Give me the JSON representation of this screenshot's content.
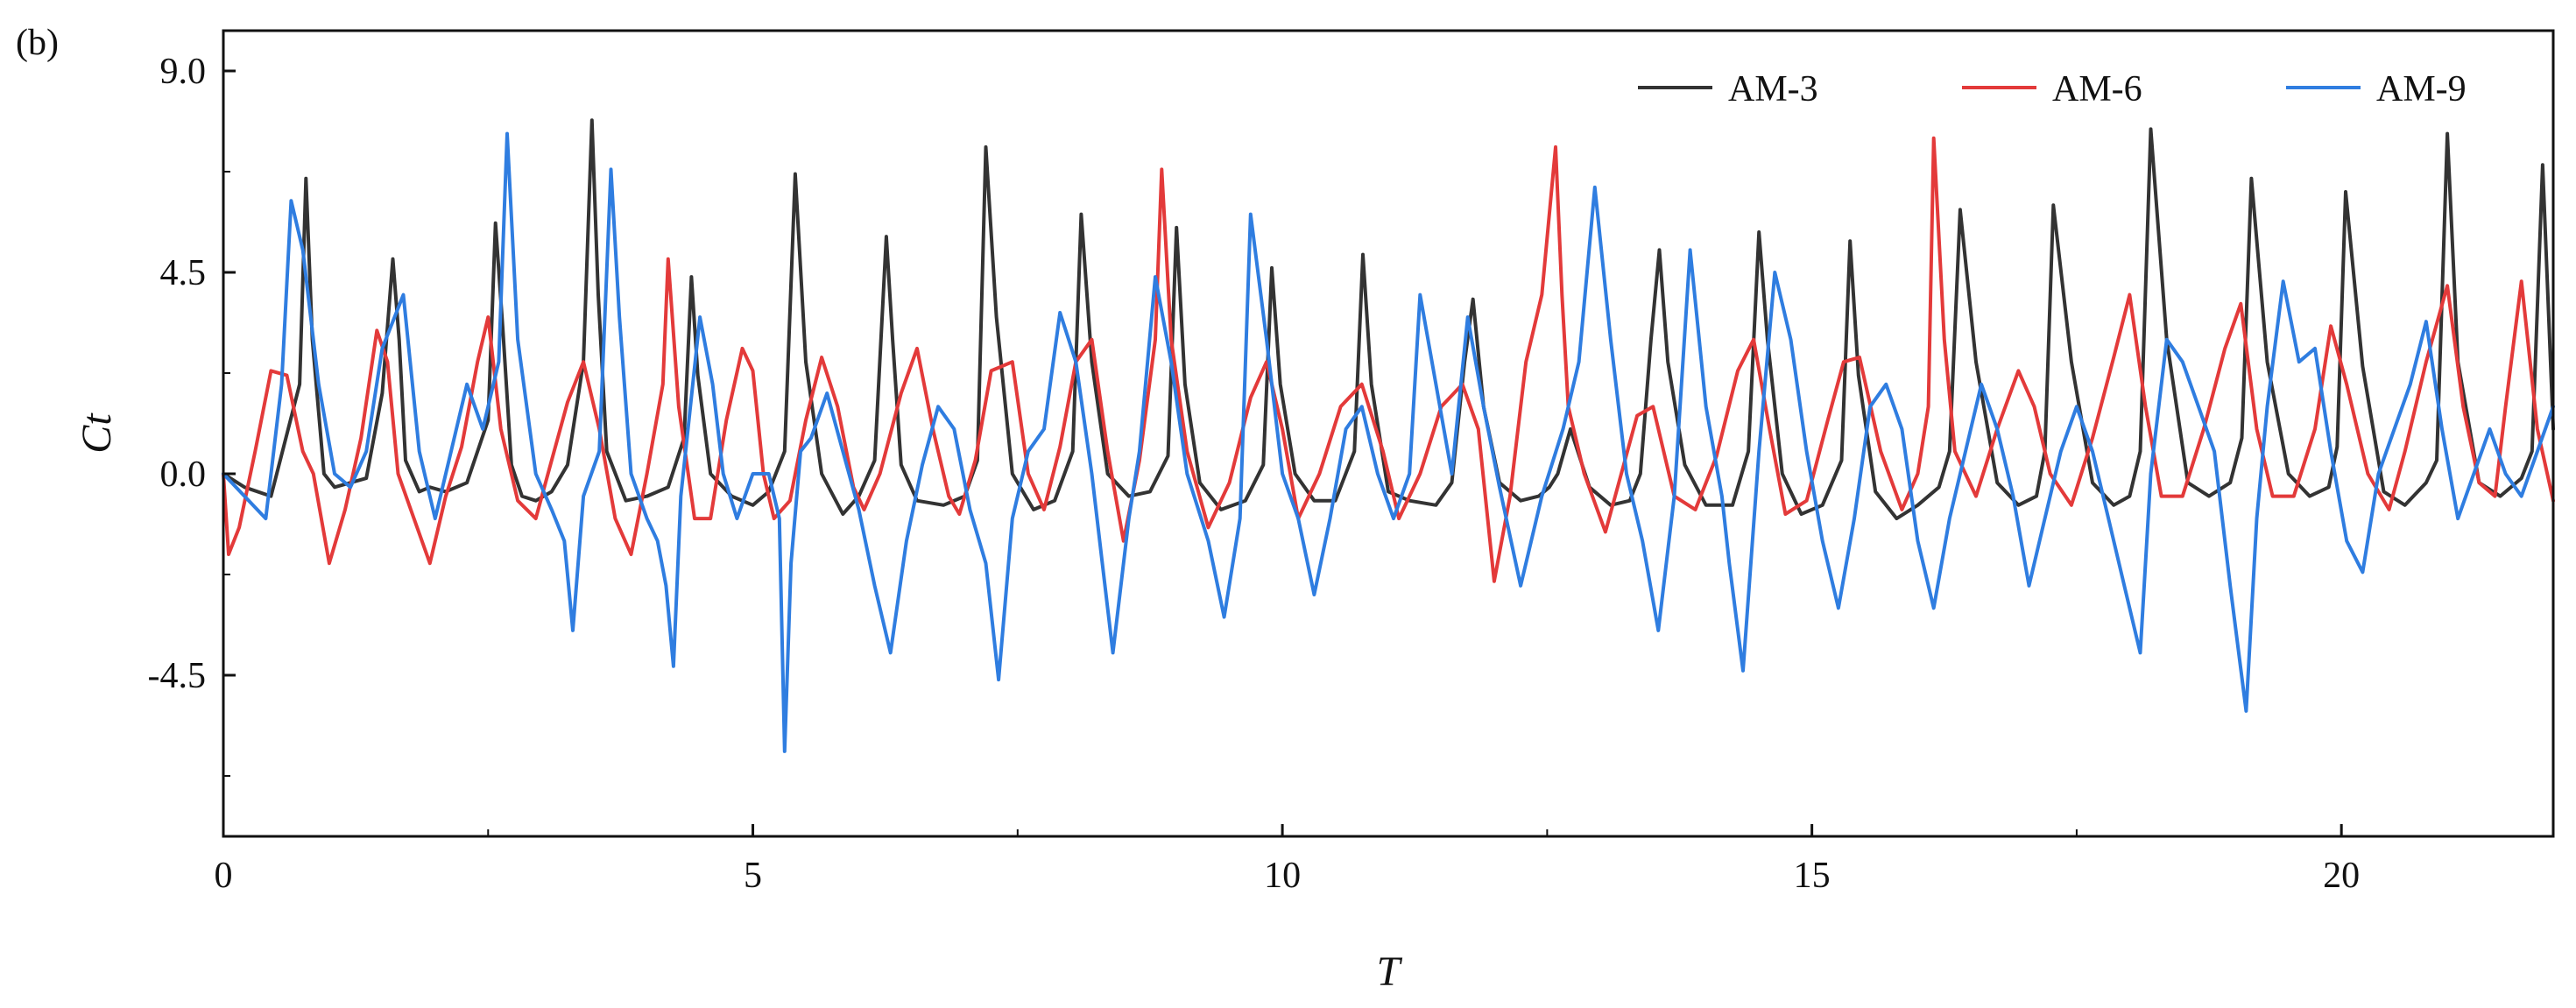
{
  "panel_label": "(b)",
  "chart_data": {
    "type": "line",
    "title": "",
    "xlabel": "T",
    "ylabel": "Ct",
    "xlim": [
      0,
      22
    ],
    "ylim": [
      -8.1,
      9.9
    ],
    "xticks": [
      0,
      5,
      10,
      15,
      20
    ],
    "xtick_labels": [
      "0",
      "5",
      "10",
      "15",
      "20"
    ],
    "yticks": [
      9.0,
      4.5,
      0.0,
      -4.5
    ],
    "ytick_labels": [
      "9.0",
      "4.5",
      "0.0",
      "-4.5"
    ],
    "grid": false,
    "legend_position": "top-right",
    "series": [
      {
        "name": "AM-3",
        "color": "#333333",
        "x": [
          0.0,
          0.2,
          0.45,
          0.72,
          0.78,
          0.84,
          0.95,
          1.05,
          1.2,
          1.35,
          1.5,
          1.6,
          1.66,
          1.72,
          1.85,
          1.95,
          2.1,
          2.3,
          2.5,
          2.57,
          2.64,
          2.72,
          2.82,
          2.95,
          3.1,
          3.25,
          3.4,
          3.48,
          3.54,
          3.62,
          3.8,
          4.0,
          4.2,
          4.35,
          4.42,
          4.48,
          4.6,
          4.8,
          5.0,
          5.15,
          5.3,
          5.4,
          5.5,
          5.65,
          5.85,
          6.0,
          6.15,
          6.26,
          6.32,
          6.4,
          6.55,
          6.8,
          7.0,
          7.12,
          7.2,
          7.3,
          7.45,
          7.65,
          7.85,
          8.02,
          8.1,
          8.2,
          8.35,
          8.55,
          8.75,
          8.92,
          9.0,
          9.08,
          9.22,
          9.42,
          9.65,
          9.82,
          9.9,
          9.98,
          10.12,
          10.3,
          10.5,
          10.68,
          10.76,
          10.84,
          11.0,
          11.2,
          11.45,
          11.6,
          11.72,
          11.8,
          11.9,
          12.05,
          12.25,
          12.42,
          12.52,
          12.6,
          12.72,
          12.9,
          13.1,
          13.28,
          13.38,
          13.48,
          13.56,
          13.64,
          13.8,
          14.0,
          14.25,
          14.4,
          14.5,
          14.58,
          14.72,
          14.9,
          15.1,
          15.28,
          15.36,
          15.44,
          15.6,
          15.8,
          16.0,
          16.2,
          16.3,
          16.4,
          16.55,
          16.75,
          16.95,
          17.12,
          17.2,
          17.28,
          17.45,
          17.65,
          17.85,
          18.0,
          18.1,
          18.2,
          18.35,
          18.55,
          18.75,
          18.95,
          19.06,
          19.15,
          19.3,
          19.5,
          19.7,
          19.88,
          19.96,
          20.04,
          20.2,
          20.4,
          20.6,
          20.8,
          20.9,
          21.0,
          21.1,
          21.3,
          21.5,
          21.7,
          21.8,
          21.9,
          22.0
        ],
        "y": [
          0.0,
          -0.3,
          -0.5,
          2.0,
          6.6,
          3.0,
          0.0,
          -0.3,
          -0.2,
          -0.1,
          1.8,
          4.8,
          3.0,
          0.3,
          -0.4,
          -0.3,
          -0.4,
          -0.2,
          1.2,
          5.6,
          3.2,
          0.2,
          -0.5,
          -0.6,
          -0.4,
          0.2,
          2.5,
          7.9,
          4.0,
          0.5,
          -0.6,
          -0.5,
          -0.3,
          0.8,
          4.4,
          2.2,
          0.0,
          -0.5,
          -0.7,
          -0.4,
          0.5,
          6.7,
          2.5,
          0.0,
          -0.9,
          -0.5,
          0.3,
          5.3,
          3.0,
          0.2,
          -0.6,
          -0.7,
          -0.5,
          0.3,
          7.3,
          3.5,
          0.0,
          -0.8,
          -0.6,
          0.5,
          5.8,
          2.5,
          0.0,
          -0.5,
          -0.4,
          0.4,
          5.5,
          2.0,
          -0.2,
          -0.8,
          -0.6,
          0.2,
          4.6,
          2.0,
          0.0,
          -0.6,
          -0.6,
          0.5,
          4.9,
          2.0,
          -0.4,
          -0.6,
          -0.7,
          -0.2,
          2.5,
          3.9,
          1.5,
          -0.2,
          -0.6,
          -0.5,
          -0.3,
          0.0,
          1.0,
          -0.3,
          -0.7,
          -0.6,
          0.0,
          3.0,
          5.0,
          2.5,
          0.2,
          -0.7,
          -0.7,
          0.5,
          5.4,
          3.0,
          0.0,
          -0.9,
          -0.7,
          0.3,
          5.2,
          2.2,
          -0.4,
          -1.0,
          -0.7,
          -0.3,
          0.5,
          5.9,
          2.5,
          -0.2,
          -0.7,
          -0.5,
          0.5,
          6.0,
          2.5,
          -0.2,
          -0.7,
          -0.5,
          0.5,
          7.7,
          3.0,
          -0.2,
          -0.5,
          -0.2,
          0.8,
          6.6,
          2.5,
          0.0,
          -0.5,
          -0.3,
          0.6,
          6.3,
          2.4,
          -0.4,
          -0.7,
          -0.2,
          0.3,
          7.6,
          2.5,
          -0.2,
          -0.5,
          -0.1,
          0.5,
          6.9,
          1.0
        ]
      },
      {
        "name": "AM-6",
        "color": "#e33a3a",
        "x": [
          0.0,
          0.05,
          0.15,
          0.3,
          0.45,
          0.6,
          0.75,
          0.85,
          1.0,
          1.15,
          1.3,
          1.45,
          1.55,
          1.65,
          1.8,
          1.95,
          2.1,
          2.25,
          2.4,
          2.5,
          2.62,
          2.78,
          2.95,
          3.1,
          3.25,
          3.4,
          3.55,
          3.7,
          3.85,
          4.0,
          4.15,
          4.2,
          4.3,
          4.45,
          4.6,
          4.75,
          4.9,
          5.0,
          5.1,
          5.2,
          5.35,
          5.5,
          5.65,
          5.8,
          5.95,
          6.05,
          6.2,
          6.4,
          6.55,
          6.7,
          6.85,
          6.95,
          7.1,
          7.25,
          7.45,
          7.6,
          7.75,
          7.9,
          8.05,
          8.2,
          8.35,
          8.5,
          8.65,
          8.8,
          8.86,
          8.95,
          9.1,
          9.3,
          9.5,
          9.7,
          9.85,
          10.0,
          10.15,
          10.35,
          10.55,
          10.75,
          10.95,
          11.1,
          11.3,
          11.5,
          11.7,
          11.85,
          12.0,
          12.15,
          12.3,
          12.45,
          12.58,
          12.64,
          12.7,
          12.85,
          13.05,
          13.2,
          13.35,
          13.5,
          13.7,
          13.9,
          14.1,
          14.3,
          14.45,
          14.6,
          14.75,
          14.95,
          15.15,
          15.3,
          15.45,
          15.65,
          15.85,
          16.0,
          16.1,
          16.15,
          16.25,
          16.35,
          16.55,
          16.75,
          16.95,
          17.1,
          17.25,
          17.45,
          17.65,
          17.85,
          18.0,
          18.15,
          18.3,
          18.5,
          18.7,
          18.9,
          19.05,
          19.2,
          19.35,
          19.55,
          19.75,
          19.9,
          20.05,
          20.25,
          20.45,
          20.6,
          20.8,
          21.0,
          21.15,
          21.3,
          21.45,
          21.55,
          21.7,
          21.85,
          22.0
        ],
        "y": [
          0.0,
          -1.8,
          -1.2,
          0.5,
          2.3,
          2.2,
          0.5,
          0.0,
          -2.0,
          -0.8,
          0.8,
          3.2,
          2.5,
          0.0,
          -1.0,
          -2.0,
          -0.5,
          0.6,
          2.5,
          3.5,
          1.0,
          -0.6,
          -1.0,
          0.3,
          1.6,
          2.5,
          1.0,
          -1.0,
          -1.8,
          0.0,
          2.0,
          4.8,
          1.5,
          -1.0,
          -1.0,
          1.2,
          2.8,
          2.3,
          0.0,
          -1.0,
          -0.6,
          1.2,
          2.6,
          1.5,
          -0.3,
          -0.8,
          0.0,
          1.8,
          2.8,
          1.0,
          -0.5,
          -0.9,
          0.3,
          2.3,
          2.5,
          0.0,
          -0.8,
          0.6,
          2.5,
          3.0,
          0.5,
          -1.5,
          0.3,
          3.0,
          6.8,
          3.0,
          0.5,
          -1.2,
          -0.2,
          1.7,
          2.5,
          1.0,
          -1.0,
          0.0,
          1.5,
          2.0,
          0.5,
          -1.0,
          0.0,
          1.5,
          2.0,
          1.0,
          -2.4,
          -0.5,
          2.5,
          4.0,
          7.3,
          4.0,
          1.5,
          0.0,
          -1.3,
          0.0,
          1.3,
          1.5,
          -0.5,
          -0.8,
          0.4,
          2.3,
          3.0,
          1.0,
          -0.9,
          -0.6,
          1.2,
          2.5,
          2.6,
          0.5,
          -0.8,
          0.0,
          1.5,
          7.5,
          3.0,
          0.5,
          -0.5,
          1.0,
          2.3,
          1.5,
          0.0,
          -0.7,
          0.8,
          2.6,
          4.0,
          1.5,
          -0.5,
          -0.5,
          1.0,
          2.8,
          3.8,
          1.0,
          -0.5,
          -0.5,
          1.0,
          3.3,
          2.0,
          0.0,
          -0.8,
          0.5,
          2.5,
          4.2,
          1.5,
          -0.2,
          -0.5,
          1.5,
          4.3,
          1.0,
          -0.6
        ]
      },
      {
        "name": "AM-9",
        "color": "#2f7de0",
        "x": [
          0.0,
          0.2,
          0.4,
          0.55,
          0.64,
          0.75,
          0.9,
          1.05,
          1.2,
          1.35,
          1.5,
          1.7,
          1.85,
          2.0,
          2.15,
          2.3,
          2.45,
          2.6,
          2.68,
          2.78,
          2.95,
          3.1,
          3.22,
          3.3,
          3.4,
          3.55,
          3.66,
          3.74,
          3.85,
          4.0,
          4.1,
          4.18,
          4.25,
          4.32,
          4.5,
          4.62,
          4.72,
          4.85,
          5.0,
          5.15,
          5.25,
          5.3,
          5.36,
          5.45,
          5.55,
          5.7,
          5.85,
          6.0,
          6.15,
          6.3,
          6.45,
          6.6,
          6.75,
          6.9,
          7.05,
          7.2,
          7.32,
          7.45,
          7.6,
          7.75,
          7.9,
          8.05,
          8.2,
          8.3,
          8.4,
          8.55,
          8.65,
          8.8,
          8.95,
          9.1,
          9.3,
          9.45,
          9.6,
          9.7,
          9.85,
          10.0,
          10.15,
          10.3,
          10.45,
          10.6,
          10.75,
          10.9,
          11.05,
          11.2,
          11.3,
          11.45,
          11.6,
          11.75,
          11.9,
          12.05,
          12.25,
          12.45,
          12.65,
          12.8,
          12.95,
          13.1,
          13.25,
          13.4,
          13.55,
          13.7,
          13.85,
          14.0,
          14.15,
          14.22,
          14.35,
          14.5,
          14.65,
          14.8,
          14.95,
          15.1,
          15.25,
          15.4,
          15.55,
          15.7,
          15.85,
          16.0,
          16.15,
          16.3,
          16.45,
          16.6,
          16.75,
          16.9,
          17.05,
          17.2,
          17.35,
          17.5,
          17.65,
          17.8,
          17.95,
          18.1,
          18.2,
          18.35,
          18.5,
          18.65,
          18.8,
          18.95,
          19.1,
          19.2,
          19.3,
          19.45,
          19.6,
          19.75,
          19.9,
          20.05,
          20.2,
          20.35,
          20.5,
          20.65,
          20.8,
          20.95,
          21.1,
          21.25,
          21.4,
          21.55,
          21.7,
          21.85,
          22.0
        ],
        "y": [
          0.0,
          -0.5,
          -1.0,
          2.0,
          6.1,
          5.0,
          2.0,
          0.0,
          -0.3,
          0.5,
          2.8,
          4.0,
          0.5,
          -1.0,
          0.5,
          2.0,
          1.0,
          2.5,
          7.6,
          3.0,
          0.0,
          -0.8,
          -1.5,
          -3.5,
          -0.5,
          0.5,
          6.8,
          3.5,
          0.0,
          -1.0,
          -1.5,
          -2.5,
          -4.3,
          -0.5,
          3.5,
          2.0,
          0.0,
          -1.0,
          0.0,
          0.0,
          -1.0,
          -6.2,
          -2.0,
          0.5,
          0.8,
          1.8,
          0.5,
          -0.8,
          -2.5,
          -4.0,
          -1.5,
          0.2,
          1.5,
          1.0,
          -0.8,
          -2.0,
          -4.6,
          -1.0,
          0.5,
          1.0,
          3.6,
          2.5,
          0.0,
          -2.0,
          -4.0,
          -1.0,
          0.5,
          4.4,
          2.5,
          0.0,
          -1.5,
          -3.2,
          -1.0,
          5.8,
          3.0,
          0.0,
          -1.0,
          -2.7,
          -1.0,
          1.0,
          1.5,
          0.0,
          -1.0,
          0.0,
          4.0,
          2.0,
          0.0,
          3.5,
          1.5,
          -0.3,
          -2.5,
          -0.5,
          1.0,
          2.5,
          6.4,
          3.0,
          0.0,
          -1.5,
          -3.5,
          -0.5,
          5.0,
          1.5,
          -0.5,
          -2.0,
          -4.4,
          0.5,
          4.5,
          3.0,
          0.5,
          -1.5,
          -3.0,
          -1.0,
          1.5,
          2.0,
          1.0,
          -1.5,
          -3.0,
          -1.0,
          0.5,
          2.0,
          1.0,
          -0.5,
          -2.5,
          -1.0,
          0.5,
          1.5,
          0.5,
          -1.0,
          -2.5,
          -4.0,
          0.0,
          3.0,
          2.5,
          1.5,
          0.5,
          -2.5,
          -5.3,
          -1.0,
          1.5,
          4.3,
          2.5,
          2.8,
          0.5,
          -1.5,
          -2.2,
          0.0,
          1.0,
          2.0,
          3.4,
          1.0,
          -1.0,
          0.0,
          1.0,
          0.0,
          -0.5,
          0.5,
          1.5
        ]
      }
    ]
  }
}
